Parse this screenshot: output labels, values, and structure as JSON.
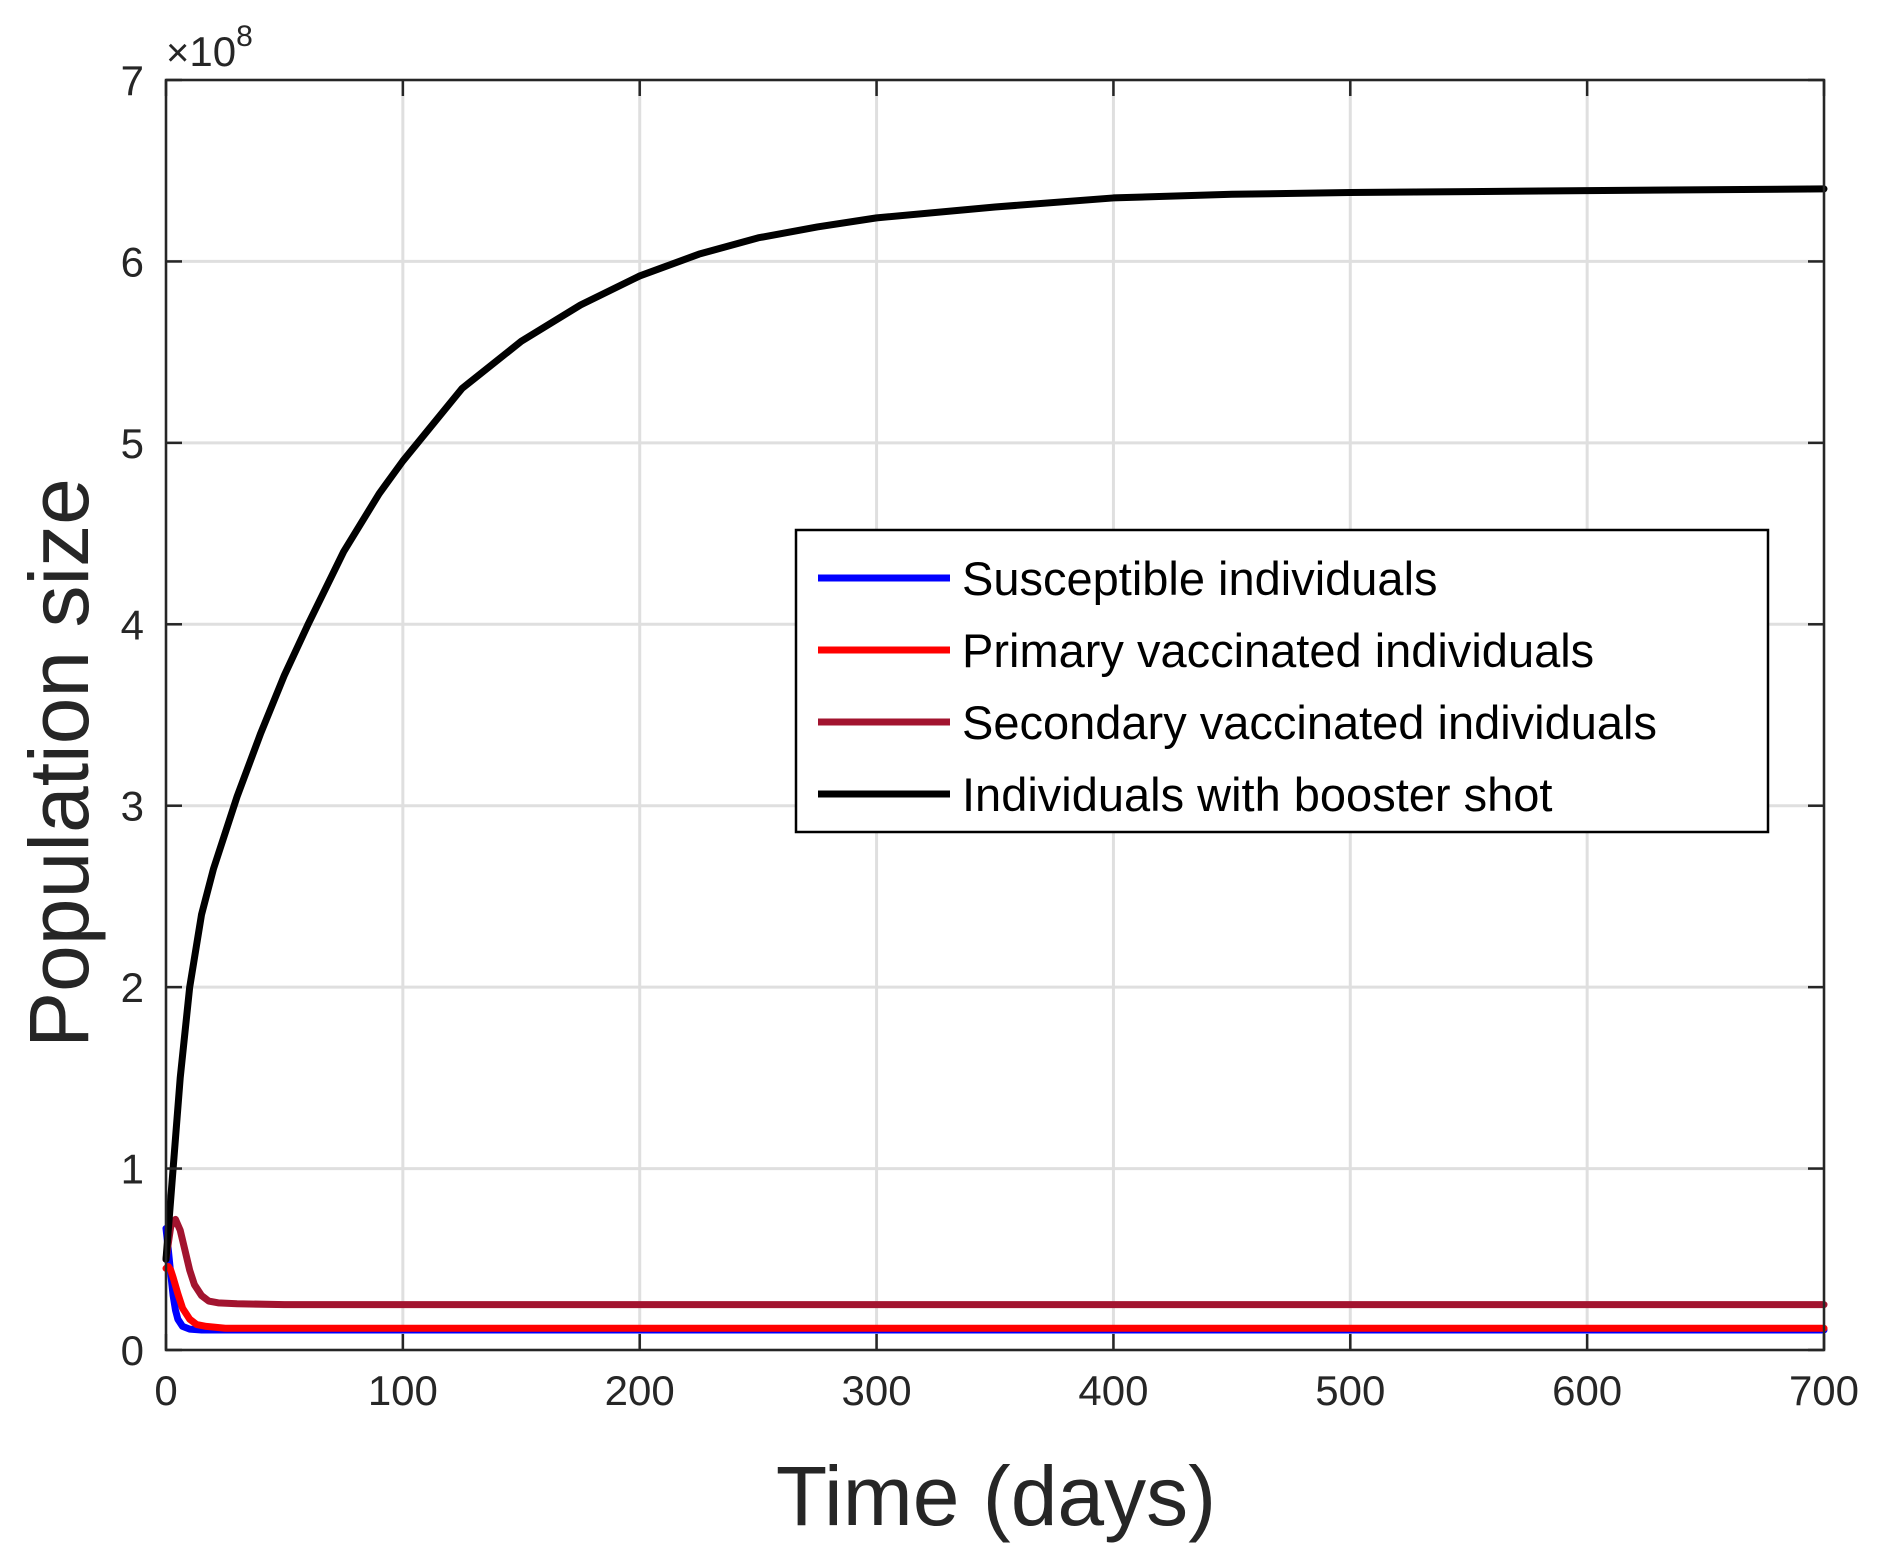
{
  "chart_data": {
    "type": "line",
    "xlabel": "Time (days)",
    "ylabel": "Population size",
    "xlim": [
      0,
      700
    ],
    "ylim": [
      0,
      7
    ],
    "y_multiplier": {
      "times": "×",
      "base": "10",
      "exponent": "8"
    },
    "xticks": [
      "0",
      "100",
      "200",
      "300",
      "400",
      "500",
      "600",
      "700"
    ],
    "yticks": [
      "0",
      "1",
      "2",
      "3",
      "4",
      "5",
      "6",
      "7"
    ],
    "grid": true,
    "legend_position": "right-center",
    "series": [
      {
        "name": "Susceptible individuals",
        "color": "#0000ff",
        "points": [
          [
            0,
            0.67
          ],
          [
            1,
            0.55
          ],
          [
            2,
            0.42
          ],
          [
            3,
            0.3
          ],
          [
            4,
            0.22
          ],
          [
            5,
            0.17
          ],
          [
            7,
            0.13
          ],
          [
            10,
            0.115
          ],
          [
            15,
            0.11
          ],
          [
            30,
            0.11
          ],
          [
            100,
            0.11
          ],
          [
            300,
            0.11
          ],
          [
            500,
            0.11
          ],
          [
            700,
            0.11
          ]
        ]
      },
      {
        "name": "Primary vaccinated individuals",
        "color": "#ff0000",
        "points": [
          [
            0,
            0.45
          ],
          [
            1,
            0.46
          ],
          [
            2,
            0.44
          ],
          [
            3,
            0.4
          ],
          [
            5,
            0.31
          ],
          [
            7,
            0.23
          ],
          [
            10,
            0.17
          ],
          [
            13,
            0.14
          ],
          [
            17,
            0.13
          ],
          [
            25,
            0.12
          ],
          [
            50,
            0.12
          ],
          [
            100,
            0.12
          ],
          [
            300,
            0.12
          ],
          [
            500,
            0.12
          ],
          [
            700,
            0.12
          ]
        ]
      },
      {
        "name": "Secondary vaccinated individuals",
        "color": "#a2142f",
        "points": [
          [
            0,
            0.5
          ],
          [
            2,
            0.68
          ],
          [
            4,
            0.72
          ],
          [
            6,
            0.66
          ],
          [
            8,
            0.55
          ],
          [
            10,
            0.44
          ],
          [
            12,
            0.36
          ],
          [
            15,
            0.3
          ],
          [
            18,
            0.27
          ],
          [
            22,
            0.26
          ],
          [
            30,
            0.255
          ],
          [
            50,
            0.25
          ],
          [
            100,
            0.25
          ],
          [
            300,
            0.25
          ],
          [
            500,
            0.25
          ],
          [
            700,
            0.25
          ]
        ]
      },
      {
        "name": "Individuals with booster shot",
        "color": "#000000",
        "points": [
          [
            0,
            0.5
          ],
          [
            3,
            1.0
          ],
          [
            6,
            1.5
          ],
          [
            10,
            2.0
          ],
          [
            15,
            2.4
          ],
          [
            20,
            2.65
          ],
          [
            30,
            3.05
          ],
          [
            40,
            3.4
          ],
          [
            50,
            3.72
          ],
          [
            60,
            4.0
          ],
          [
            75,
            4.4
          ],
          [
            90,
            4.72
          ],
          [
            100,
            4.9
          ],
          [
            125,
            5.3
          ],
          [
            150,
            5.56
          ],
          [
            175,
            5.76
          ],
          [
            200,
            5.92
          ],
          [
            225,
            6.04
          ],
          [
            250,
            6.13
          ],
          [
            275,
            6.19
          ],
          [
            300,
            6.24
          ],
          [
            350,
            6.3
          ],
          [
            400,
            6.35
          ],
          [
            450,
            6.37
          ],
          [
            500,
            6.38
          ],
          [
            550,
            6.385
          ],
          [
            600,
            6.39
          ],
          [
            650,
            6.395
          ],
          [
            700,
            6.4
          ]
        ]
      }
    ]
  }
}
